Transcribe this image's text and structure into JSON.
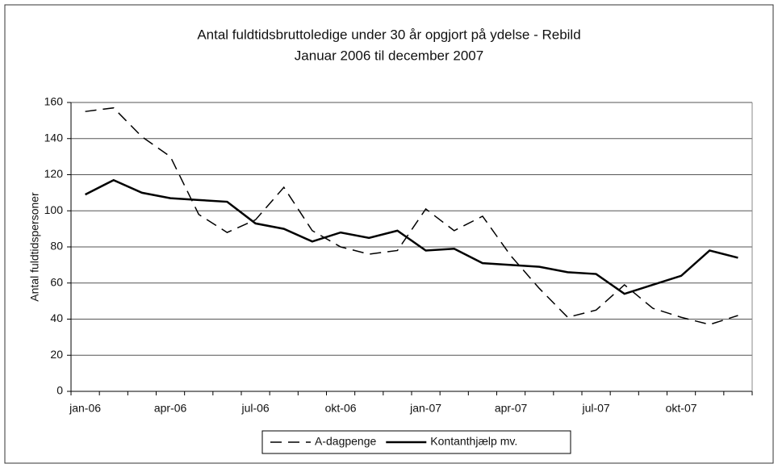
{
  "chart_data": {
    "type": "line",
    "title": "Antal fuldtidsbruttoledige under 30 år opgjort på ydelse - Rebild",
    "subtitle": "Januar 2006 til december 2007",
    "y_label": "Antal fuldtidspersoner",
    "categories": [
      "jan-06",
      null,
      null,
      "apr-06",
      null,
      null,
      "jul-06",
      null,
      null,
      "okt-06",
      null,
      null,
      "jan-07",
      null,
      null,
      "apr-07",
      null,
      null,
      "jul-07",
      null,
      null,
      "okt-07",
      null,
      null
    ],
    "series": [
      {
        "name": "A-dagpenge",
        "color": "#000000",
        "dash": true,
        "values": [
          155,
          157,
          141,
          130,
          98,
          88,
          95,
          113,
          89,
          80,
          76,
          78,
          101,
          89,
          97,
          75,
          57,
          41,
          45,
          59,
          46,
          41,
          37,
          42
        ]
      },
      {
        "name": "Kontanthjælp mv.",
        "color": "#000000",
        "dash": false,
        "values": [
          109,
          117,
          110,
          107,
          106,
          105,
          93,
          90,
          83,
          88,
          85,
          89,
          78,
          79,
          71,
          70,
          69,
          66,
          65,
          54,
          59,
          64,
          78,
          74
        ]
      }
    ],
    "ylim": [
      0,
      160
    ],
    "yticks": [
      0,
      20,
      40,
      60,
      80,
      100,
      120,
      140,
      160
    ],
    "grid": true,
    "legend": "bottom"
  }
}
